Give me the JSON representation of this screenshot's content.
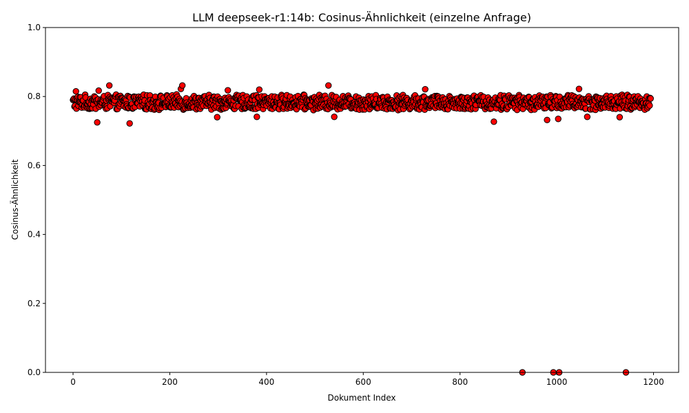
{
  "chart_data": {
    "type": "scatter",
    "title": "LLM deepseek-r1:14b: Cosinus-Ähnlichkeit (einzelne Anfrage)",
    "xlabel": "Dokument Index",
    "ylabel": "Cosinus-Ähnlichkeit",
    "xlim": [
      -57,
      1252
    ],
    "ylim": [
      0.0,
      1.0
    ],
    "xticks": [
      0,
      200,
      400,
      600,
      800,
      1000,
      1200
    ],
    "xtick_labels": [
      "0",
      "200",
      "400",
      "600",
      "800",
      "1000",
      "1200"
    ],
    "yticks": [
      0.0,
      0.2,
      0.4,
      0.6,
      0.8,
      1.0
    ],
    "ytick_labels": [
      "0.0",
      "0.2",
      "0.4",
      "0.6",
      "0.8",
      "1.0"
    ],
    "grid": false,
    "marker_color": "#ff0000",
    "marker_edge_color": "#000000",
    "n_points": 1195,
    "generation": {
      "base": 0.783,
      "spread": 0.04,
      "seed": 1234
    },
    "outliers": [
      {
        "x": 6,
        "y": 0.815
      },
      {
        "x": 12,
        "y": 0.786
      },
      {
        "x": 50,
        "y": 0.725
      },
      {
        "x": 53,
        "y": 0.817
      },
      {
        "x": 75,
        "y": 0.832
      },
      {
        "x": 117,
        "y": 0.722
      },
      {
        "x": 223,
        "y": 0.822
      },
      {
        "x": 226,
        "y": 0.832
      },
      {
        "x": 298,
        "y": 0.74
      },
      {
        "x": 320,
        "y": 0.818
      },
      {
        "x": 380,
        "y": 0.741
      },
      {
        "x": 385,
        "y": 0.82
      },
      {
        "x": 528,
        "y": 0.832
      },
      {
        "x": 540,
        "y": 0.741
      },
      {
        "x": 728,
        "y": 0.821
      },
      {
        "x": 870,
        "y": 0.727
      },
      {
        "x": 929,
        "y": 0.0
      },
      {
        "x": 980,
        "y": 0.732
      },
      {
        "x": 993,
        "y": 0.0
      },
      {
        "x": 1003,
        "y": 0.735
      },
      {
        "x": 1005,
        "y": 0.0
      },
      {
        "x": 1046,
        "y": 0.822
      },
      {
        "x": 1063,
        "y": 0.741
      },
      {
        "x": 1130,
        "y": 0.74
      },
      {
        "x": 1143,
        "y": 0.0
      }
    ]
  }
}
